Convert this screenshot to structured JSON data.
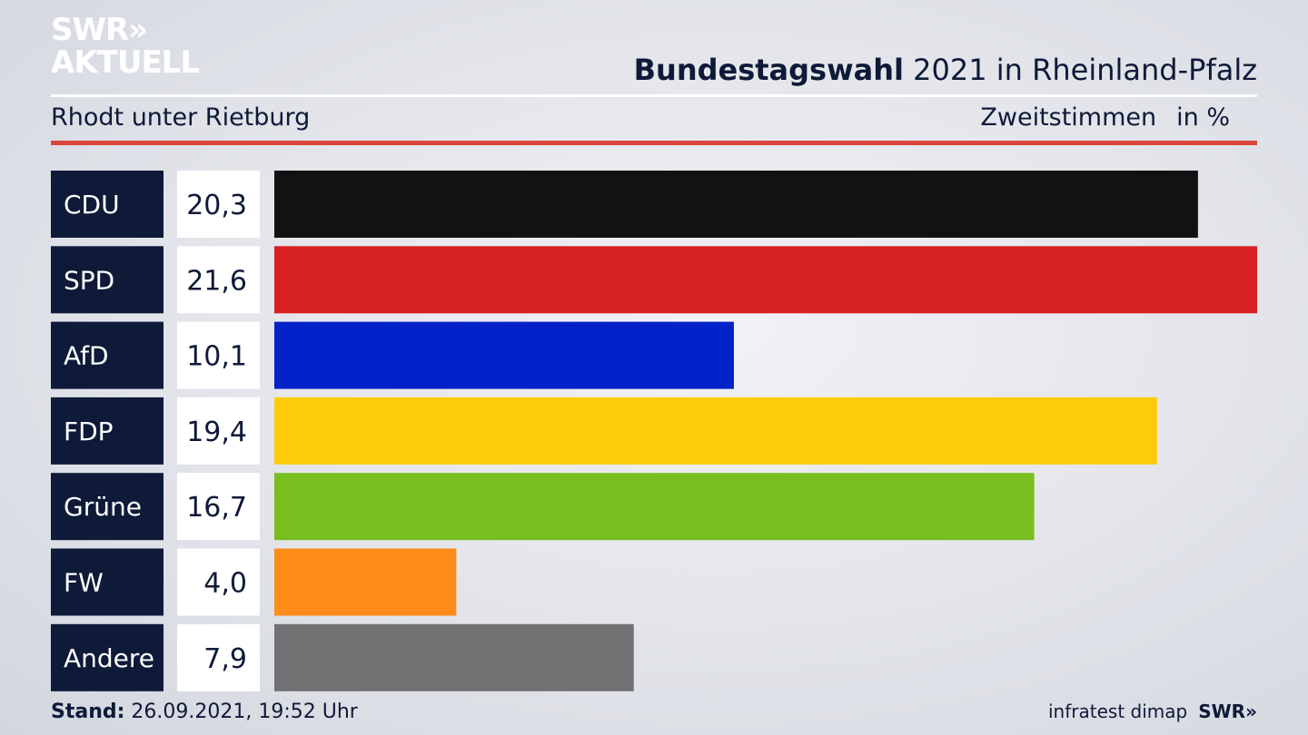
{
  "logo": {
    "line1": "SWR»",
    "line2": "AKTUELL"
  },
  "header": {
    "title_bold": "Bundestagswahl",
    "title_rest": " 2021 in Rheinland-Pfalz",
    "subtitle": "Rhodt unter Rietburg",
    "measure": "Zweitstimmen",
    "unit": "in %"
  },
  "footer": {
    "stand_label": "Stand:",
    "stand_value": " 26.09.2021, 19:52 Uhr",
    "source": "infratest dimap",
    "brand": "SWR»"
  },
  "chart_data": {
    "type": "bar",
    "orientation": "horizontal",
    "categories": [
      "CDU",
      "SPD",
      "AfD",
      "FDP",
      "Grüne",
      "FW",
      "Andere"
    ],
    "values": [
      20.3,
      21.6,
      10.1,
      19.4,
      16.7,
      4.0,
      7.9
    ],
    "value_labels": [
      "20,3",
      "21,6",
      "10,1",
      "19,4",
      "16,7",
      "4,0",
      "7,9"
    ],
    "colors": [
      "#121212",
      "#d72020",
      "#0022c8",
      "#fdcb0c",
      "#78be1e",
      "#ff8c19",
      "#717173"
    ],
    "xlim": [
      0,
      21.6
    ],
    "grid": false
  }
}
